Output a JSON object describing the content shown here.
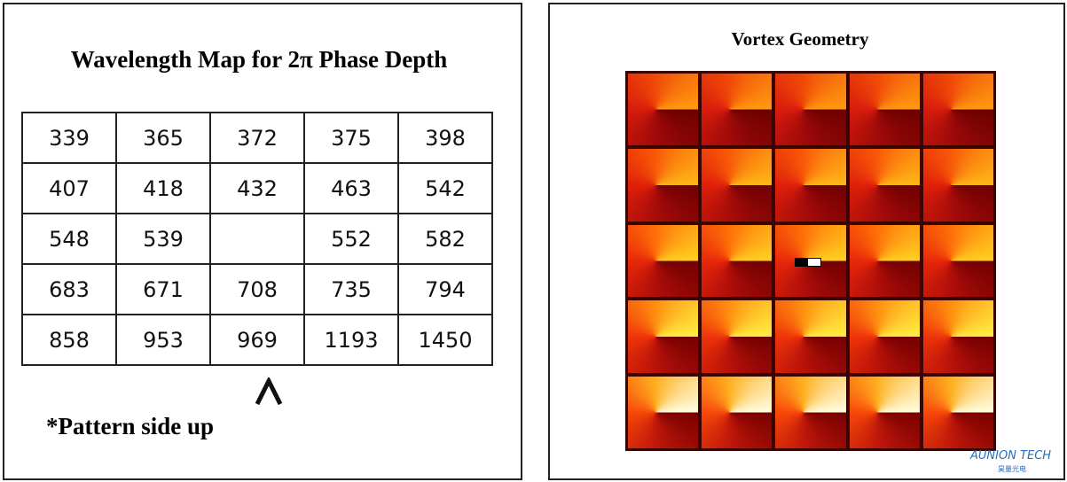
{
  "left_panel": {
    "title": "Wavelength Map for 2π Phase Depth",
    "table": {
      "rows": [
        [
          339,
          365,
          372,
          375,
          398
        ],
        [
          407,
          418,
          432,
          463,
          542
        ],
        [
          548,
          539,
          null,
          552,
          582
        ],
        [
          683,
          671,
          708,
          735,
          794
        ],
        [
          858,
          953,
          969,
          1193,
          1450
        ]
      ]
    },
    "note": "*Pattern side up"
  },
  "right_panel": {
    "title": "Vortex Geometry"
  },
  "logo": {
    "name": "AUNION TECH",
    "subtitle": "昊量光电"
  }
}
